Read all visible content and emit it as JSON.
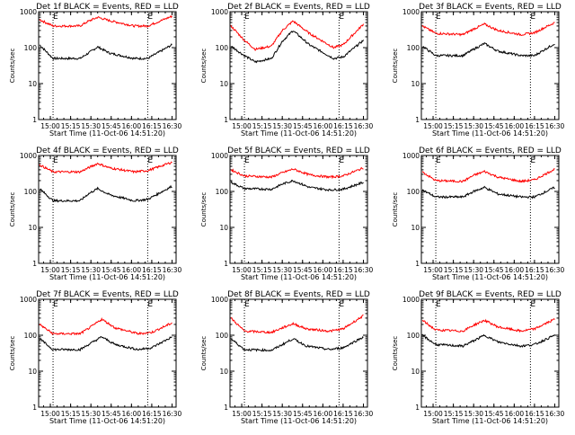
{
  "panel_title_suffix": "BLACK = Events, RED = LLD",
  "xlabel": "Start Time (11-Oct-06 14:51:20)",
  "ylabel": "Counts/sec",
  "marker_label": "E",
  "x_ticks": [
    "15:00",
    "15:15",
    "15:30",
    "15:45",
    "16:00",
    "16:15",
    "16:30"
  ],
  "y_ticks": [
    "1",
    "10",
    "100",
    "1000"
  ],
  "colors": {
    "events": "#000000",
    "lld": "#ff0000",
    "axes": "#000000"
  },
  "chart_data": [
    {
      "type": "line",
      "title": "Det 1f",
      "xlim": [
        "14:51:20",
        "16:33"
      ],
      "ylim": [
        1,
        1000
      ],
      "yscale": "log",
      "vlines": [
        "15:02",
        "16:12"
      ],
      "series": [
        {
          "name": "BLACK = Events",
          "x": [
            "14:52",
            "15:02",
            "15:22",
            "15:28",
            "15:35",
            "15:44",
            "16:02",
            "16:12",
            "16:30"
          ],
          "y": [
            120,
            50,
            50,
            70,
            105,
            70,
            50,
            50,
            120
          ]
        },
        {
          "name": "RED = LLD",
          "x": [
            "14:52",
            "15:02",
            "15:22",
            "15:28",
            "15:35",
            "15:44",
            "16:02",
            "16:12",
            "16:30"
          ],
          "y": [
            600,
            400,
            400,
            540,
            700,
            560,
            400,
            400,
            750
          ]
        }
      ]
    },
    {
      "type": "line",
      "title": "Det 2f",
      "xlim": [
        "14:51:20",
        "16:33"
      ],
      "ylim": [
        1,
        1000
      ],
      "yscale": "log",
      "vlines": [
        "15:02",
        "16:12"
      ],
      "series": [
        {
          "name": "BLACK = Events",
          "x": [
            "14:52",
            "15:02",
            "15:10",
            "15:22",
            "15:30",
            "15:38",
            "15:50",
            "16:08",
            "16:15",
            "16:30"
          ],
          "y": [
            110,
            60,
            40,
            50,
            150,
            300,
            120,
            50,
            55,
            160
          ]
        },
        {
          "name": "RED = LLD",
          "x": [
            "14:52",
            "15:02",
            "15:10",
            "15:22",
            "15:30",
            "15:38",
            "15:50",
            "16:08",
            "16:15",
            "16:30"
          ],
          "y": [
            400,
            160,
            90,
            110,
            300,
            550,
            250,
            100,
            120,
            450
          ]
        }
      ]
    },
    {
      "type": "line",
      "title": "Det 3f",
      "xlim": [
        "14:51:20",
        "16:33"
      ],
      "ylim": [
        1,
        1000
      ],
      "yscale": "log",
      "vlines": [
        "15:02",
        "16:12"
      ],
      "series": [
        {
          "name": "BLACK = Events",
          "x": [
            "14:52",
            "15:02",
            "15:22",
            "15:30",
            "15:38",
            "15:48",
            "16:05",
            "16:15",
            "16:30"
          ],
          "y": [
            110,
            60,
            60,
            90,
            130,
            80,
            60,
            60,
            130
          ]
        },
        {
          "name": "RED = LLD",
          "x": [
            "14:52",
            "15:02",
            "15:22",
            "15:30",
            "15:38",
            "15:48",
            "16:05",
            "16:15",
            "16:30"
          ],
          "y": [
            400,
            250,
            230,
            330,
            450,
            300,
            230,
            260,
            500
          ]
        }
      ]
    },
    {
      "type": "line",
      "title": "Det 4f",
      "xlim": [
        "14:51:20",
        "16:33"
      ],
      "ylim": [
        1,
        1000
      ],
      "yscale": "log",
      "vlines": [
        "15:02",
        "16:12"
      ],
      "series": [
        {
          "name": "BLACK = Events",
          "x": [
            "14:52",
            "15:02",
            "15:22",
            "15:28",
            "15:35",
            "15:44",
            "16:02",
            "16:12",
            "16:30"
          ],
          "y": [
            120,
            55,
            55,
            85,
            120,
            80,
            55,
            60,
            140
          ]
        },
        {
          "name": "RED = LLD",
          "x": [
            "14:52",
            "15:02",
            "15:22",
            "15:28",
            "15:35",
            "15:44",
            "16:02",
            "16:12",
            "16:30"
          ],
          "y": [
            550,
            350,
            350,
            450,
            600,
            450,
            350,
            380,
            650
          ]
        }
      ]
    },
    {
      "type": "line",
      "title": "Det 5f",
      "xlim": [
        "14:51:20",
        "16:33"
      ],
      "ylim": [
        1,
        1000
      ],
      "yscale": "log",
      "vlines": [
        "15:02",
        "16:12"
      ],
      "series": [
        {
          "name": "BLACK = Events",
          "x": [
            "14:52",
            "15:02",
            "15:22",
            "15:30",
            "15:38",
            "15:50",
            "16:05",
            "16:15",
            "16:30"
          ],
          "y": [
            180,
            120,
            115,
            160,
            200,
            130,
            110,
            115,
            180
          ]
        },
        {
          "name": "RED = LLD",
          "x": [
            "14:52",
            "15:02",
            "15:22",
            "15:30",
            "15:38",
            "15:50",
            "16:05",
            "16:15",
            "16:30"
          ],
          "y": [
            400,
            270,
            250,
            330,
            420,
            290,
            250,
            270,
            450
          ]
        }
      ]
    },
    {
      "type": "line",
      "title": "Det 6f",
      "xlim": [
        "14:51:20",
        "16:33"
      ],
      "ylim": [
        1,
        1000
      ],
      "yscale": "log",
      "vlines": [
        "15:02",
        "16:12"
      ],
      "series": [
        {
          "name": "BLACK = Events",
          "x": [
            "14:52",
            "15:02",
            "15:22",
            "15:30",
            "15:38",
            "15:48",
            "16:05",
            "16:15",
            "16:30"
          ],
          "y": [
            110,
            70,
            70,
            100,
            130,
            85,
            70,
            70,
            130
          ]
        },
        {
          "name": "RED = LLD",
          "x": [
            "14:52",
            "15:02",
            "15:22",
            "15:30",
            "15:38",
            "15:48",
            "16:05",
            "16:15",
            "16:30"
          ],
          "y": [
            350,
            200,
            190,
            280,
            360,
            250,
            190,
            210,
            420
          ]
        }
      ]
    },
    {
      "type": "line",
      "title": "Det 7f",
      "xlim": [
        "14:51:20",
        "16:33"
      ],
      "ylim": [
        1,
        1000
      ],
      "yscale": "log",
      "vlines": [
        "15:02",
        "16:12"
      ],
      "series": [
        {
          "name": "BLACK = Events",
          "x": [
            "14:52",
            "15:02",
            "15:22",
            "15:30",
            "15:38",
            "15:48",
            "16:05",
            "16:15",
            "16:30"
          ],
          "y": [
            80,
            40,
            40,
            60,
            90,
            55,
            40,
            45,
            90
          ]
        },
        {
          "name": "RED = LLD",
          "x": [
            "14:52",
            "15:02",
            "15:22",
            "15:30",
            "15:38",
            "15:48",
            "16:05",
            "16:15",
            "16:30"
          ],
          "y": [
            200,
            110,
            110,
            170,
            280,
            160,
            110,
            120,
            220
          ]
        }
      ]
    },
    {
      "type": "line",
      "title": "Det 8f",
      "xlim": [
        "14:51:20",
        "16:33"
      ],
      "ylim": [
        1,
        1000
      ],
      "yscale": "log",
      "vlines": [
        "15:02",
        "16:12"
      ],
      "series": [
        {
          "name": "BLACK = Events",
          "x": [
            "14:52",
            "15:02",
            "15:22",
            "15:30",
            "15:38",
            "15:48",
            "16:05",
            "16:15",
            "16:30"
          ],
          "y": [
            80,
            40,
            38,
            55,
            80,
            50,
            40,
            45,
            90
          ]
        },
        {
          "name": "RED = LLD",
          "x": [
            "14:52",
            "15:02",
            "15:22",
            "15:30",
            "15:38",
            "15:48",
            "16:05",
            "16:15",
            "16:30"
          ],
          "y": [
            300,
            130,
            120,
            160,
            210,
            150,
            130,
            150,
            350
          ]
        }
      ]
    },
    {
      "type": "line",
      "title": "Det 9f",
      "xlim": [
        "14:51:20",
        "16:33"
      ],
      "ylim": [
        1,
        1000
      ],
      "yscale": "log",
      "vlines": [
        "15:02",
        "16:12"
      ],
      "series": [
        {
          "name": "BLACK = Events",
          "x": [
            "14:52",
            "15:02",
            "15:22",
            "15:30",
            "15:38",
            "15:48",
            "16:05",
            "16:15",
            "16:30"
          ],
          "y": [
            100,
            55,
            50,
            70,
            100,
            65,
            50,
            55,
            100
          ]
        },
        {
          "name": "RED = LLD",
          "x": [
            "14:52",
            "15:02",
            "15:22",
            "15:30",
            "15:38",
            "15:48",
            "16:05",
            "16:15",
            "16:30"
          ],
          "y": [
            260,
            140,
            130,
            190,
            260,
            170,
            130,
            150,
            280
          ]
        }
      ]
    }
  ]
}
